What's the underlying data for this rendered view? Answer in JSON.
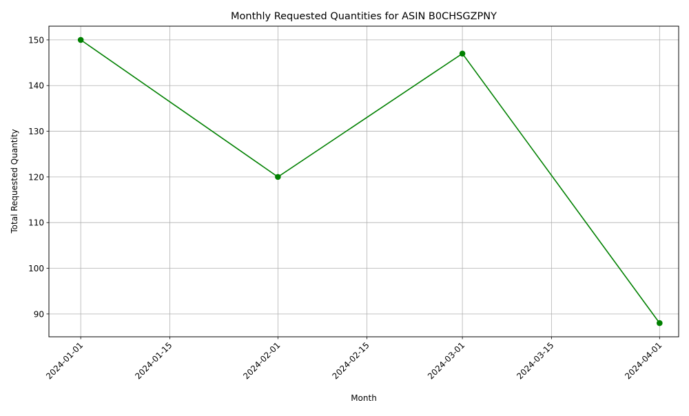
{
  "chart_data": {
    "type": "line",
    "title": "Monthly Requested Quantities for ASIN B0CHSGZPNY",
    "xlabel": "Month",
    "ylabel": "Total Requested Quantity",
    "x_axis_type": "date",
    "x_ticks": [
      "2024-01-01",
      "2024-01-15",
      "2024-02-01",
      "2024-02-15",
      "2024-03-01",
      "2024-03-15",
      "2024-04-01"
    ],
    "y_ticks": [
      90,
      100,
      110,
      120,
      130,
      140,
      150
    ],
    "xlim": [
      "2023-12-27",
      "2024-04-04"
    ],
    "ylim": [
      85,
      153
    ],
    "grid": true,
    "series": [
      {
        "x": [
          "2024-01-01",
          "2024-02-01",
          "2024-03-01",
          "2024-04-01"
        ],
        "values": [
          150,
          120,
          147,
          88
        ],
        "color": "#008000",
        "marker": "circle"
      }
    ]
  }
}
